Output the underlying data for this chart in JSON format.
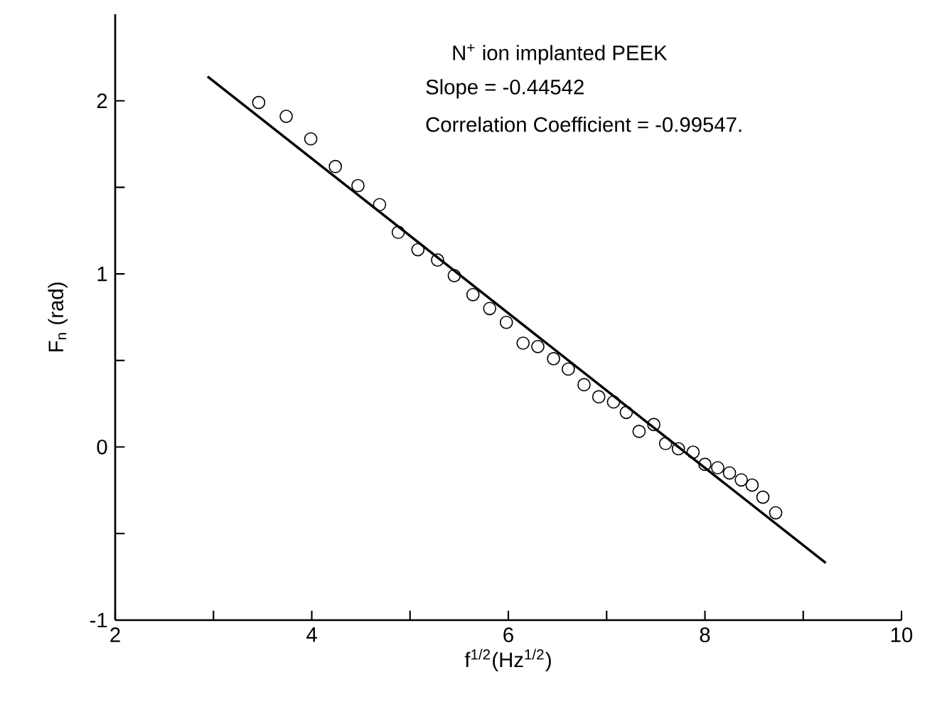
{
  "chart_data": {
    "type": "scatter",
    "title": "N$^{+}$ ion implanted PEEK",
    "xlabel": "f$^{1/2}$(Hz$^{1/2}$)",
    "ylabel": "F$_{n}$ (rad)",
    "annotations": [
      "Slope = -0.44542",
      "Correlation Coefficient = -0.99547."
    ],
    "xlim": [
      2,
      10
    ],
    "ylim": [
      -1,
      2.5
    ],
    "xticks": [
      2,
      {
        "value": 3,
        "label": null
      },
      4,
      {
        "value": 5,
        "label": null
      },
      6,
      {
        "value": 7,
        "label": null
      },
      8,
      {
        "value": 9,
        "label": null
      },
      10
    ],
    "yticks": [
      -1,
      {
        "value": -0.5,
        "label": null
      },
      0,
      {
        "value": 0.5,
        "label": null
      },
      1,
      {
        "value": 1.5,
        "label": null
      },
      2
    ],
    "grid": false,
    "series": [
      {
        "marker": "circle",
        "color": "#000000",
        "x": [
          3.46,
          3.74,
          3.99,
          4.24,
          4.47,
          4.69,
          4.88,
          5.08,
          5.28,
          5.45,
          5.64,
          5.81,
          5.98,
          6.15,
          6.3,
          6.46,
          6.61,
          6.77,
          6.92,
          7.07,
          7.2,
          7.33,
          7.48,
          7.6,
          7.73,
          7.88,
          8.0,
          8.13,
          8.25,
          8.37,
          8.48,
          8.59,
          8.72
        ],
        "values": [
          1.99,
          1.91,
          1.78,
          1.62,
          1.51,
          1.4,
          1.24,
          1.14,
          1.08,
          0.99,
          0.88,
          0.8,
          0.72,
          0.6,
          0.58,
          0.51,
          0.45,
          0.36,
          0.29,
          0.26,
          0.2,
          0.09,
          0.13,
          0.02,
          -0.01,
          -0.03,
          -0.1,
          -0.12,
          -0.15,
          -0.19,
          -0.22,
          -0.29,
          -0.38
        ]
      },
      {
        "type": "line",
        "marker": "none",
        "color": "#000000",
        "x": [
          2.94,
          9.23
        ],
        "values": [
          2.14,
          -0.67
        ]
      }
    ]
  }
}
